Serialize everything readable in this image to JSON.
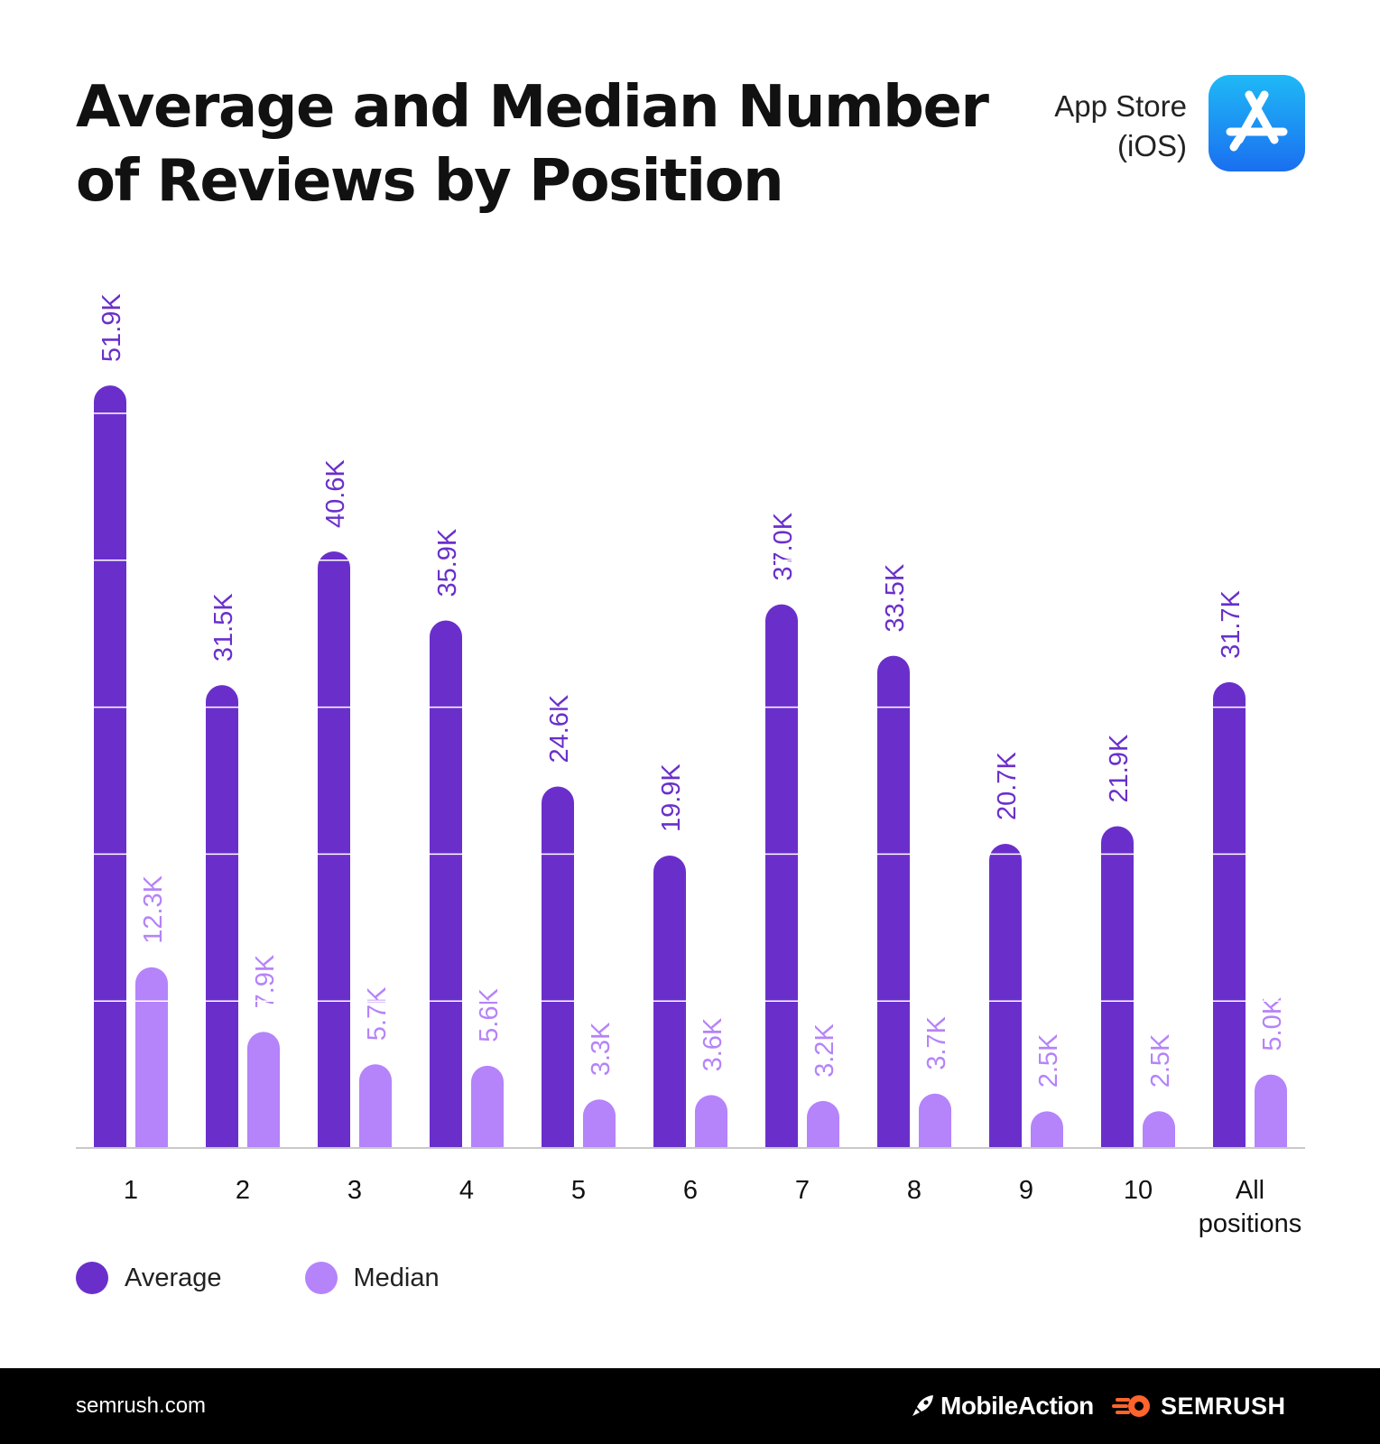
{
  "title": {
    "line1": "Average and Median Number",
    "line2": "of Reviews by Position"
  },
  "store": {
    "line1": "App Store",
    "line2": "(iOS)",
    "icon": "app-store-icon"
  },
  "colors": {
    "average": "#6a2fcb",
    "median": "#b583fa",
    "text": "#111111",
    "footer_bg": "#000000",
    "semrush_orange": "#ff642d"
  },
  "chart_data": {
    "type": "bar",
    "title": "Average and Median Number of Reviews by Position",
    "categories": [
      "1",
      "2",
      "3",
      "4",
      "5",
      "6",
      "7",
      "8",
      "9",
      "10",
      "All positions"
    ],
    "series": [
      {
        "name": "Average",
        "values": [
          51.9,
          31.5,
          40.6,
          35.9,
          24.6,
          19.9,
          37.0,
          33.5,
          20.7,
          21.9,
          31.7
        ],
        "labels": [
          "51.9K",
          "31.5K",
          "40.6K",
          "35.9K",
          "24.6K",
          "19.9K",
          "37.0K",
          "33.5K",
          "20.7K",
          "21.9K",
          "31.7K"
        ]
      },
      {
        "name": "Median",
        "values": [
          12.3,
          7.9,
          5.7,
          5.6,
          3.3,
          3.6,
          3.2,
          3.7,
          2.5,
          2.5,
          5.0
        ],
        "labels": [
          "12.3K",
          "7.9K",
          "5.7K",
          "5.6K",
          "3.3K",
          "3.6K",
          "3.2K",
          "3.7K",
          "2.5K",
          "2.5K",
          "5.0K"
        ]
      }
    ],
    "unit": "K",
    "ylim": [
      0,
      52
    ],
    "gridlines": [
      10,
      20,
      30,
      40,
      50
    ],
    "xlabel": "",
    "ylabel": "",
    "legend_position": "bottom-left"
  },
  "legend": {
    "average": "Average",
    "median": "Median"
  },
  "footer": {
    "site": "semrush.com",
    "brand1": "MobileAction",
    "brand2": "SEMRUSH"
  }
}
